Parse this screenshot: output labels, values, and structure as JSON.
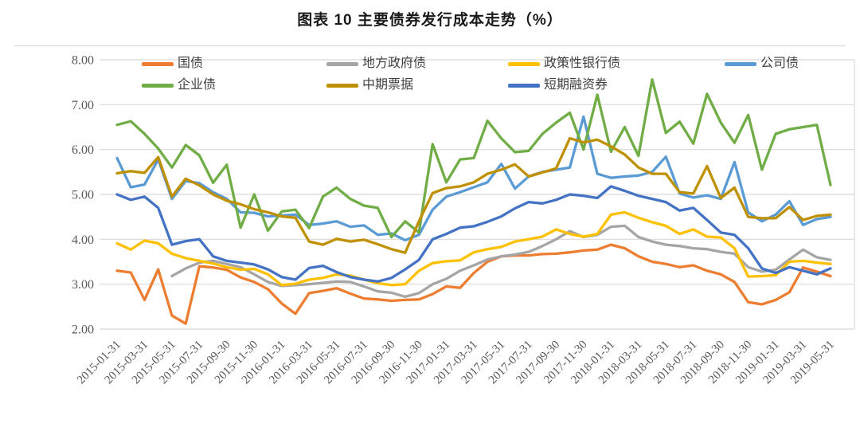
{
  "title": "图表 10 主要债券发行成本走势（%）",
  "chart_data": {
    "type": "line",
    "title": "图表 10 主要债券发行成本走势（%）",
    "xlabel": "",
    "ylabel": "",
    "ylim": [
      2.0,
      8.0
    ],
    "y_tick_step": 1.0,
    "y_tick_labels": [
      "2.00",
      "3.00",
      "4.00",
      "5.00",
      "6.00",
      "7.00",
      "8.00"
    ],
    "x_tick_every": 2,
    "grid": true,
    "legend_position": "top-inside-two-rows",
    "style": {
      "grid_color": "#D9D9D9",
      "axis_text_color": "#595959",
      "line_width": 3.3
    },
    "x": [
      "2015-01-31",
      "2015-02-28",
      "2015-03-31",
      "2015-04-30",
      "2015-05-31",
      "2015-06-30",
      "2015-07-31",
      "2015-08-31",
      "2015-09-30",
      "2015-10-31",
      "2015-11-30",
      "2015-12-31",
      "2016-01-31",
      "2016-02-29",
      "2016-03-31",
      "2016-04-30",
      "2016-05-31",
      "2016-06-30",
      "2016-07-31",
      "2016-08-31",
      "2016-09-30",
      "2016-10-31",
      "2016-11-30",
      "2016-12-31",
      "2017-01-31",
      "2017-02-28",
      "2017-03-31",
      "2017-04-30",
      "2017-05-31",
      "2017-06-30",
      "2017-07-31",
      "2017-08-31",
      "2017-09-30",
      "2017-10-31",
      "2017-11-30",
      "2017-12-31",
      "2018-01-31",
      "2018-02-28",
      "2018-03-31",
      "2018-04-30",
      "2018-05-31",
      "2018-06-30",
      "2018-07-31",
      "2018-08-31",
      "2018-09-30",
      "2018-10-31",
      "2018-11-30",
      "2018-12-31",
      "2019-01-31",
      "2019-02-28",
      "2019-03-31",
      "2019-04-30",
      "2019-05-31"
    ],
    "series": [
      {
        "key": "treasury-bond",
        "name": "国债",
        "color": "#ED7D31",
        "values": [
          3.3,
          3.26,
          2.65,
          3.33,
          2.3,
          2.12,
          3.4,
          3.37,
          3.32,
          3.15,
          3.05,
          2.89,
          2.57,
          2.34,
          2.8,
          2.85,
          2.91,
          2.79,
          2.68,
          2.66,
          2.63,
          2.65,
          2.66,
          2.78,
          2.95,
          2.92,
          3.25,
          3.5,
          3.62,
          3.64,
          3.64,
          3.67,
          3.68,
          3.71,
          3.75,
          3.77,
          3.88,
          3.8,
          3.62,
          3.5,
          3.45,
          3.38,
          3.42,
          3.3,
          3.22,
          3.05,
          2.6,
          2.55,
          2.65,
          2.82,
          3.37,
          3.28,
          3.18
        ]
      },
      {
        "key": "local-government-bond",
        "name": "地方政府债",
        "color": "#A5A5A5",
        "values": [
          null,
          null,
          null,
          null,
          3.18,
          3.35,
          3.48,
          3.52,
          3.45,
          3.38,
          3.22,
          3.05,
          2.96,
          2.98,
          3.0,
          3.03,
          3.06,
          3.05,
          2.95,
          2.84,
          2.81,
          2.72,
          2.8,
          3.0,
          3.12,
          3.3,
          3.42,
          3.55,
          3.62,
          3.66,
          3.72,
          3.85,
          4.0,
          4.18,
          4.05,
          4.1,
          4.28,
          4.3,
          4.05,
          3.95,
          3.88,
          3.85,
          3.8,
          3.78,
          3.72,
          3.68,
          3.38,
          3.28,
          3.32,
          3.55,
          3.77,
          3.6,
          3.54
        ]
      },
      {
        "key": "policy-bank-bond",
        "name": "政策性银行债",
        "color": "#FFC000",
        "values": [
          3.91,
          3.77,
          3.97,
          3.91,
          3.68,
          3.58,
          3.52,
          3.46,
          3.38,
          3.32,
          3.34,
          3.22,
          2.98,
          3.01,
          3.1,
          3.14,
          3.22,
          3.19,
          3.1,
          3.02,
          2.98,
          3.0,
          3.3,
          3.47,
          3.51,
          3.53,
          3.71,
          3.78,
          3.83,
          3.95,
          4.0,
          4.06,
          4.22,
          4.12,
          4.06,
          4.12,
          4.55,
          4.6,
          4.48,
          4.38,
          4.3,
          4.12,
          4.22,
          4.06,
          4.04,
          3.8,
          3.17,
          3.18,
          3.2,
          3.5,
          3.52,
          3.48,
          3.45
        ]
      },
      {
        "key": "corporate-bond",
        "name": "公司债",
        "color": "#5B9BD5",
        "values": [
          5.81,
          5.16,
          5.22,
          5.78,
          4.9,
          5.3,
          5.25,
          5.05,
          4.9,
          4.6,
          4.59,
          4.51,
          4.53,
          4.55,
          4.32,
          4.35,
          4.4,
          4.28,
          4.31,
          4.1,
          4.13,
          3.98,
          4.1,
          4.66,
          4.95,
          5.05,
          5.16,
          5.27,
          5.68,
          5.13,
          5.4,
          5.5,
          5.55,
          5.6,
          6.73,
          5.46,
          5.37,
          5.4,
          5.42,
          5.5,
          5.84,
          5.02,
          4.93,
          4.98,
          4.9,
          5.72,
          4.6,
          4.4,
          4.55,
          4.85,
          4.32,
          4.45,
          4.5
        ]
      },
      {
        "key": "enterprise-bond",
        "name": "企业债",
        "color": "#70AD47",
        "values": [
          6.55,
          6.63,
          6.35,
          6.02,
          5.6,
          6.1,
          5.87,
          5.26,
          5.66,
          4.26,
          5.0,
          4.19,
          4.62,
          4.66,
          4.25,
          4.95,
          5.15,
          4.9,
          4.75,
          4.7,
          4.05,
          4.4,
          4.15,
          6.12,
          5.27,
          5.78,
          5.81,
          6.64,
          6.25,
          5.94,
          5.97,
          6.35,
          6.6,
          6.82,
          6.0,
          7.22,
          5.95,
          6.5,
          5.86,
          7.56,
          6.37,
          6.62,
          6.13,
          7.24,
          6.6,
          6.15,
          6.77,
          5.55,
          6.35,
          6.45,
          6.5,
          6.55,
          5.21
        ]
      },
      {
        "key": "medium-term-note",
        "name": "中期票据",
        "color": "#BF9000",
        "values": [
          5.47,
          5.52,
          5.48,
          5.83,
          4.95,
          5.35,
          5.2,
          5.0,
          4.86,
          4.78,
          4.67,
          4.6,
          4.51,
          4.48,
          3.95,
          3.88,
          4.01,
          3.95,
          3.99,
          3.89,
          3.78,
          3.7,
          4.4,
          5.03,
          5.14,
          5.18,
          5.27,
          5.46,
          5.55,
          5.67,
          5.4,
          5.49,
          5.58,
          6.25,
          6.16,
          6.22,
          6.07,
          5.89,
          5.6,
          5.46,
          5.46,
          5.05,
          5.02,
          5.63,
          4.92,
          5.15,
          4.5,
          4.47,
          4.47,
          4.72,
          4.43,
          4.52,
          4.55
        ]
      },
      {
        "key": "short-term-financing-bill",
        "name": "短期融资券",
        "color": "#4472C4",
        "values": [
          5.0,
          4.88,
          4.95,
          4.7,
          3.88,
          3.96,
          4.0,
          3.62,
          3.52,
          3.48,
          3.44,
          3.33,
          3.16,
          3.1,
          3.36,
          3.41,
          3.27,
          3.16,
          3.1,
          3.06,
          3.14,
          3.33,
          3.54,
          4.0,
          4.12,
          4.26,
          4.29,
          4.39,
          4.51,
          4.69,
          4.83,
          4.8,
          4.88,
          5.0,
          4.97,
          4.92,
          5.18,
          5.08,
          4.97,
          4.9,
          4.83,
          4.64,
          4.7,
          4.43,
          4.15,
          4.1,
          3.8,
          3.35,
          3.25,
          3.38,
          3.3,
          3.22,
          3.35
        ]
      }
    ]
  }
}
